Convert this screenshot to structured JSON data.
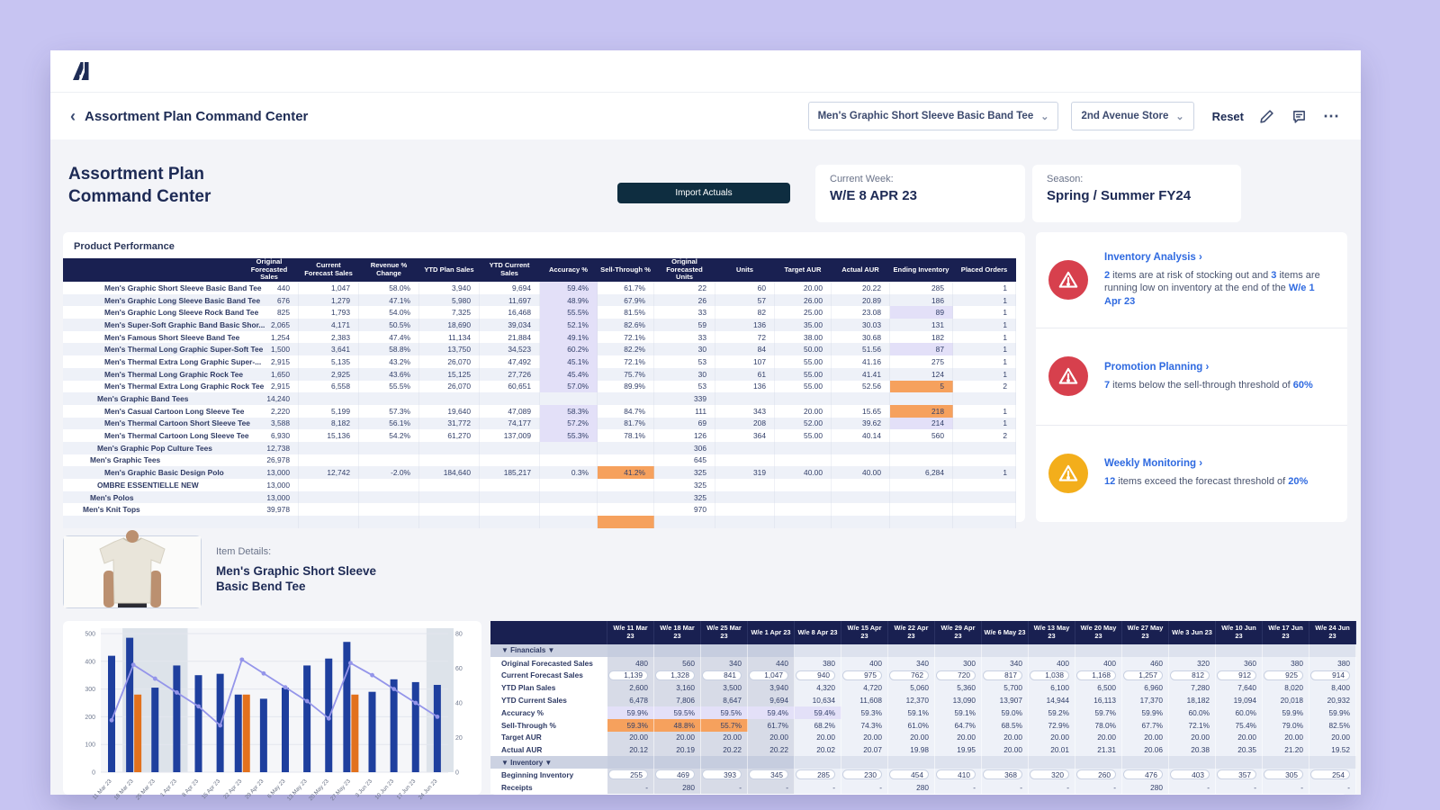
{
  "colors": {
    "accent_navy": "#192051",
    "link_blue": "#2f6ae0",
    "alert_red": "#d7404d",
    "alert_yellow": "#f3ae1b",
    "hl_purple": "#e3e0f8",
    "hl_orange": "#f6a15d",
    "bar_blue": "#1e3f9e",
    "bar_orange": "#e2711d",
    "line_purple": "#9495ea"
  },
  "topbar": {
    "logo": "anaplan-mark"
  },
  "breadcrumb": {
    "back": "‹",
    "title": "Assortment Plan Command Center",
    "product_dropdown": "Men's Graphic Short Sleeve Basic Band Tee",
    "store_dropdown": "2nd Avenue Store",
    "dropdown_chevron": "⌄",
    "reset_label": "Reset",
    "more_icon": "⋯"
  },
  "header": {
    "title_line1": "Assortment Plan",
    "title_line2": "Command Center",
    "import_button": "Import Actuals",
    "current_week_label": "Current Week:",
    "current_week_value": "W/E 8 APR 23",
    "season_label": "Season:",
    "season_value": "Spring / Summer FY24"
  },
  "product_performance": {
    "title": "Product Performance",
    "columns": [
      "",
      "Original Forecasted Sales",
      "Current Forecast Sales",
      "Revenue % Change",
      "YTD Plan Sales",
      "YTD Current Sales",
      "Accuracy %",
      "Sell-Through %",
      "Original Forecasted Units",
      "Units",
      "Target AUR",
      "Actual AUR",
      "Ending Inventory",
      "Placed Orders"
    ],
    "rows": [
      {
        "name": "Men's Graphic Short Sleeve Basic Band Tee",
        "level": 3,
        "values": [
          "440",
          "1,047",
          "58.0%",
          "3,940",
          "9,694",
          "59.4%",
          "61.7%",
          "22",
          "60",
          "20.00",
          "20.22",
          "285",
          "1"
        ],
        "hl": {
          "5": "purple"
        }
      },
      {
        "name": "Men's Graphic Long Sleeve Basic Band Tee",
        "level": 3,
        "values": [
          "676",
          "1,279",
          "47.1%",
          "5,980",
          "11,697",
          "48.9%",
          "67.9%",
          "26",
          "57",
          "26.00",
          "20.89",
          "186",
          "1"
        ],
        "hl": {
          "5": "purple"
        }
      },
      {
        "name": "Men's Graphic Long Sleeve Rock Band Tee",
        "level": 3,
        "values": [
          "825",
          "1,793",
          "54.0%",
          "7,325",
          "16,468",
          "55.5%",
          "81.5%",
          "33",
          "82",
          "25.00",
          "23.08",
          "89",
          "1"
        ],
        "hl": {
          "5": "purple",
          "11": "purple"
        }
      },
      {
        "name": "Men's Super-Soft Graphic Band Basic Shor...",
        "level": 3,
        "values": [
          "2,065",
          "4,171",
          "50.5%",
          "18,690",
          "39,034",
          "52.1%",
          "82.6%",
          "59",
          "136",
          "35.00",
          "30.03",
          "131",
          "1"
        ],
        "hl": {
          "5": "purple"
        }
      },
      {
        "name": "Men's Famous Short Sleeve Band Tee",
        "level": 3,
        "values": [
          "1,254",
          "2,383",
          "47.4%",
          "11,134",
          "21,884",
          "49.1%",
          "72.1%",
          "33",
          "72",
          "38.00",
          "30.68",
          "182",
          "1"
        ],
        "hl": {
          "5": "purple"
        }
      },
      {
        "name": "Men's Thermal Long Graphic Super-Soft Tee",
        "level": 3,
        "values": [
          "1,500",
          "3,641",
          "58.8%",
          "13,750",
          "34,523",
          "60.2%",
          "82.2%",
          "30",
          "84",
          "50.00",
          "51.56",
          "87",
          "1"
        ],
        "hl": {
          "5": "purple",
          "11": "purple"
        }
      },
      {
        "name": "Men's Thermal Extra Long Graphic Super-...",
        "level": 3,
        "values": [
          "2,915",
          "5,135",
          "43.2%",
          "26,070",
          "47,492",
          "45.1%",
          "72.1%",
          "53",
          "107",
          "55.00",
          "41.16",
          "275",
          "1"
        ],
        "hl": {
          "5": "purple"
        }
      },
      {
        "name": "Men's Thermal Long Graphic Rock Tee",
        "level": 3,
        "values": [
          "1,650",
          "2,925",
          "43.6%",
          "15,125",
          "27,726",
          "45.4%",
          "75.7%",
          "30",
          "61",
          "55.00",
          "41.41",
          "124",
          "1"
        ],
        "hl": {
          "5": "purple"
        }
      },
      {
        "name": "Men's Thermal Extra Long Graphic Rock Tee",
        "level": 3,
        "values": [
          "2,915",
          "6,558",
          "55.5%",
          "26,070",
          "60,651",
          "57.0%",
          "89.9%",
          "53",
          "136",
          "55.00",
          "52.56",
          "5",
          "2"
        ],
        "hl": {
          "5": "purple",
          "11": "orange"
        }
      },
      {
        "name": "Men's Graphic Band Tees",
        "level": 2,
        "values": [
          "14,240",
          "",
          "",
          "",
          "",
          "",
          "",
          "339",
          "",
          "",
          "",
          "",
          ""
        ],
        "hl": {}
      },
      {
        "name": "Men's Casual Cartoon Long Sleeve Tee",
        "level": 3,
        "values": [
          "2,220",
          "5,199",
          "57.3%",
          "19,640",
          "47,089",
          "58.3%",
          "84.7%",
          "111",
          "343",
          "20.00",
          "15.65",
          "218",
          "1"
        ],
        "hl": {
          "5": "purple",
          "11": "orange"
        }
      },
      {
        "name": "Men's Thermal Cartoon Short Sleeve Tee",
        "level": 3,
        "values": [
          "3,588",
          "8,182",
          "56.1%",
          "31,772",
          "74,177",
          "57.2%",
          "81.7%",
          "69",
          "208",
          "52.00",
          "39.62",
          "214",
          "1"
        ],
        "hl": {
          "5": "purple",
          "11": "purple"
        }
      },
      {
        "name": "Men's Thermal Cartoon Long Sleeve Tee",
        "level": 3,
        "values": [
          "6,930",
          "15,136",
          "54.2%",
          "61,270",
          "137,009",
          "55.3%",
          "78.1%",
          "126",
          "364",
          "55.00",
          "40.14",
          "560",
          "2"
        ],
        "hl": {
          "5": "purple"
        }
      },
      {
        "name": "Men's Graphic Pop Culture Tees",
        "level": 2,
        "values": [
          "12,738",
          "",
          "",
          "",
          "",
          "",
          "",
          "306",
          "",
          "",
          "",
          "",
          ""
        ],
        "hl": {}
      },
      {
        "name": "Men's Graphic Tees",
        "level": 1,
        "values": [
          "26,978",
          "",
          "",
          "",
          "",
          "",
          "",
          "645",
          "",
          "",
          "",
          "",
          ""
        ],
        "hl": {}
      },
      {
        "name": "Men's Graphic Basic Design Polo",
        "level": 3,
        "values": [
          "13,000",
          "12,742",
          "-2.0%",
          "184,640",
          "185,217",
          "0.3%",
          "41.2%",
          "325",
          "319",
          "40.00",
          "40.00",
          "6,284",
          "1"
        ],
        "hl": {
          "6": "orange"
        }
      },
      {
        "name": "OMBRE ESSENTIELLE NEW",
        "level": 2,
        "values": [
          "13,000",
          "",
          "",
          "",
          "",
          "",
          "",
          "325",
          "",
          "",
          "",
          "",
          ""
        ],
        "hl": {}
      },
      {
        "name": "Men's Polos",
        "level": 1,
        "values": [
          "13,000",
          "",
          "",
          "",
          "",
          "",
          "",
          "325",
          "",
          "",
          "",
          "",
          ""
        ],
        "hl": {}
      },
      {
        "name": "Men's Knit Tops",
        "level": 0,
        "values": [
          "39,978",
          "",
          "",
          "",
          "",
          "",
          "",
          "970",
          "",
          "",
          "",
          "",
          ""
        ],
        "hl": {}
      },
      {
        "name": "",
        "level": 3,
        "partial": true,
        "values": [
          "",
          "",
          "",
          "",
          "",
          "",
          "",
          "",
          "",
          "",
          "",
          "",
          ""
        ],
        "hl": {
          "6": "orange"
        }
      }
    ]
  },
  "alerts": {
    "link_chevron": "›",
    "items": [
      {
        "color": "red",
        "title": "Inventory Analysis",
        "segments": [
          {
            "t": "2",
            "b": true
          },
          {
            "t": " items are at risk of stocking out and ",
            "b": false
          },
          {
            "t": "3",
            "b": true
          },
          {
            "t": " items are running low on inventory at the end of the ",
            "b": false
          },
          {
            "t": "W/e 1 Apr 23",
            "b": true
          }
        ]
      },
      {
        "color": "red",
        "title": "Promotion Planning",
        "segments": [
          {
            "t": "7",
            "b": true
          },
          {
            "t": " items below the sell-through threshold of ",
            "b": false
          },
          {
            "t": "60%",
            "b": true
          }
        ]
      },
      {
        "color": "yellow",
        "title": "Weekly Monitoring",
        "segments": [
          {
            "t": "12",
            "b": true
          },
          {
            "t": " items exceed the forecast threshold of ",
            "b": false
          },
          {
            "t": "20%",
            "b": true
          }
        ]
      }
    ]
  },
  "item_details": {
    "label": "Item Details:",
    "name_line1": "Men's Graphic Short Sleeve",
    "name_line2": "Basic Bend Tee"
  },
  "chart_data": {
    "type": "bar+line",
    "categories": [
      "11 Mar 23",
      "18 Mar 23",
      "25 Mar 23",
      "1 Apr 23",
      "8 Apr 23",
      "15 Apr 23",
      "22 Apr 23",
      "29 Apr 23",
      "6 May 23",
      "13 May 23",
      "20 May 23",
      "27 May 23",
      "3 Jun 23",
      "10 Jun 23",
      "17 Jun 23",
      "24 Jun 23"
    ],
    "series": [
      {
        "name": "navy-bars",
        "type": "bar",
        "axis": "left",
        "color": "#1e3f9e",
        "values": [
          420,
          485,
          305,
          385,
          350,
          355,
          280,
          265,
          305,
          385,
          410,
          470,
          290,
          335,
          325,
          315
        ]
      },
      {
        "name": "orange-bars",
        "type": "bar",
        "axis": "left",
        "color": "#e2711d",
        "values": [
          null,
          280,
          null,
          null,
          null,
          null,
          280,
          null,
          null,
          null,
          null,
          280,
          null,
          null,
          null,
          null
        ]
      },
      {
        "name": "trend-line",
        "type": "line",
        "axis": "right",
        "color": "#9495ea",
        "values": [
          30,
          62,
          54,
          46,
          38,
          27,
          65,
          57,
          49,
          41,
          31,
          63,
          56,
          48,
          40,
          32
        ]
      }
    ],
    "left_axis": {
      "ticks": [
        0,
        100,
        200,
        300,
        400,
        500
      ],
      "max": 500
    },
    "right_axis": {
      "ticks": [
        0,
        20,
        40,
        60,
        80
      ],
      "max": 80
    },
    "highlight_bands": [
      [
        1,
        3
      ],
      [
        15,
        15
      ]
    ],
    "grid": true,
    "legend": "none",
    "title": ""
  },
  "weekly_table": {
    "columns": [
      "W/e 11 Mar 23",
      "W/e 18 Mar 23",
      "W/e 25 Mar 23",
      "W/e 1 Apr 23",
      "W/e 8 Apr 23",
      "W/e 15 Apr 23",
      "W/e 22 Apr 23",
      "W/e 29 Apr 23",
      "W/e 6 May 23",
      "W/e 13 May 23",
      "W/e 20 May 23",
      "W/e 27 May 23",
      "W/e 3 Jun 23",
      "W/e 10 Jun 23",
      "W/e 17 Jun 23",
      "W/e 24 Jun 23"
    ],
    "past_columns": 4,
    "rows": [
      {
        "label": "▼ Financials ▼",
        "type": "section"
      },
      {
        "label": "Original Forecasted Sales",
        "values": [
          "480",
          "560",
          "340",
          "440",
          "380",
          "400",
          "340",
          "300",
          "340",
          "400",
          "400",
          "460",
          "320",
          "360",
          "380",
          "380"
        ],
        "hl": {}
      },
      {
        "label": "Current Forecast Sales",
        "pill": true,
        "values": [
          "1,139",
          "1,328",
          "841",
          "1,047",
          "940",
          "975",
          "762",
          "720",
          "817",
          "1,038",
          "1,168",
          "1,257",
          "812",
          "912",
          "925",
          "914"
        ],
        "hl": {}
      },
      {
        "label": "YTD Plan Sales",
        "values": [
          "2,600",
          "3,160",
          "3,500",
          "3,940",
          "4,320",
          "4,720",
          "5,060",
          "5,360",
          "5,700",
          "6,100",
          "6,500",
          "6,960",
          "7,280",
          "7,640",
          "8,020",
          "8,400"
        ],
        "hl": {}
      },
      {
        "label": "YTD Current Sales",
        "values": [
          "6,478",
          "7,806",
          "8,647",
          "9,694",
          "10,634",
          "11,608",
          "12,370",
          "13,090",
          "13,907",
          "14,944",
          "16,113",
          "17,370",
          "18,182",
          "19,094",
          "20,018",
          "20,932"
        ],
        "hl": {}
      },
      {
        "label": "Accuracy %",
        "values": [
          "59.9%",
          "59.5%",
          "59.5%",
          "59.4%",
          "59.4%",
          "59.3%",
          "59.1%",
          "59.1%",
          "59.0%",
          "59.2%",
          "59.7%",
          "59.9%",
          "60.0%",
          "60.0%",
          "59.9%",
          "59.9%"
        ],
        "hl": {
          "0": "purple",
          "1": "purple",
          "2": "purple",
          "3": "purple",
          "4": "purple"
        }
      },
      {
        "label": "Sell-Through %",
        "values": [
          "59.3%",
          "48.8%",
          "55.7%",
          "61.7%",
          "68.2%",
          "74.3%",
          "61.0%",
          "64.7%",
          "68.5%",
          "72.9%",
          "78.0%",
          "67.7%",
          "72.1%",
          "75.4%",
          "79.0%",
          "82.5%"
        ],
        "hl": {
          "0": "orange",
          "1": "orange",
          "2": "orange"
        }
      },
      {
        "label": "Target AUR",
        "values": [
          "20.00",
          "20.00",
          "20.00",
          "20.00",
          "20.00",
          "20.00",
          "20.00",
          "20.00",
          "20.00",
          "20.00",
          "20.00",
          "20.00",
          "20.00",
          "20.00",
          "20.00",
          "20.00"
        ],
        "hl": {}
      },
      {
        "label": "Actual AUR",
        "values": [
          "20.12",
          "20.19",
          "20.22",
          "20.22",
          "20.02",
          "20.07",
          "19.98",
          "19.95",
          "20.00",
          "20.01",
          "21.31",
          "20.06",
          "20.38",
          "20.35",
          "21.20",
          "19.52"
        ],
        "hl": {}
      },
      {
        "label": "▼ Inventory ▼",
        "type": "section"
      },
      {
        "label": "Beginning Inventory",
        "pill": true,
        "values": [
          "255",
          "469",
          "393",
          "345",
          "285",
          "230",
          "454",
          "410",
          "368",
          "320",
          "260",
          "476",
          "403",
          "357",
          "305",
          "254"
        ],
        "hl": {}
      },
      {
        "label": "Receipts",
        "values": [
          "-",
          "280",
          "-",
          "-",
          "-",
          "-",
          "280",
          "-",
          "-",
          "-",
          "-",
          "280",
          "-",
          "-",
          "-",
          "-"
        ],
        "hl": {}
      }
    ]
  }
}
